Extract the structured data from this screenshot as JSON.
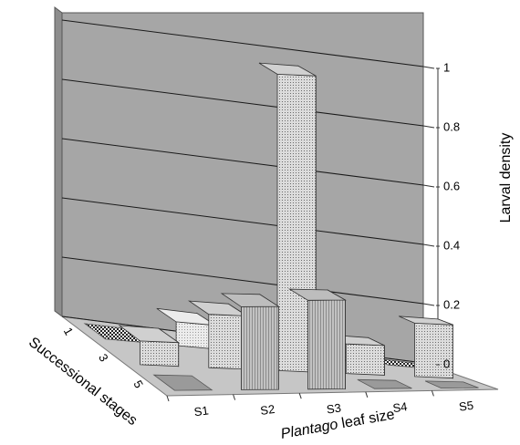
{
  "chart_data": {
    "type": "bar3d",
    "ylabel": "Larval density",
    "xlabel_italic": "Plantago",
    "xlabel_rest": " leaf size",
    "zlabel": "Successional stages",
    "ylim": [
      0,
      1
    ],
    "y_ticks": [
      "0",
      "0.2",
      "0.4",
      "0.6",
      "0.8",
      "1"
    ],
    "x_categories": [
      "S1",
      "S2",
      "S3",
      "S4",
      "S5"
    ],
    "z_categories": [
      "1",
      "3",
      "5"
    ],
    "grid": true,
    "series": [
      {
        "stage": "1",
        "values": [
          0.0,
          0.08,
          0.04,
          0.0,
          0.0
        ]
      },
      {
        "stage": "3",
        "values": [
          0.08,
          0.18,
          1.0,
          0.1,
          0.18
        ]
      },
      {
        "stage": "5",
        "values": [
          0.0,
          0.28,
          0.3,
          0.0,
          0.0
        ]
      }
    ]
  }
}
